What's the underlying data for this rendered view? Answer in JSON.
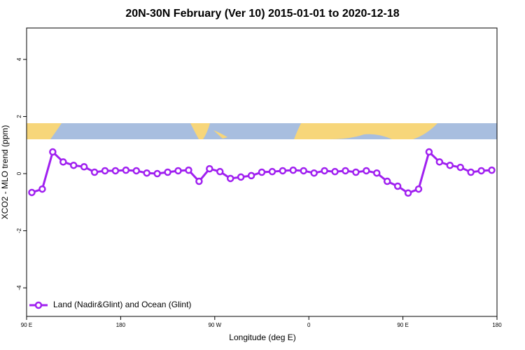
{
  "chart_data": {
    "type": "line",
    "title": "20N-30N February (Ver 10)   2015-01-01 to 2020-12-18",
    "x_label": "Longitude (deg E)",
    "y_label": "XCO2 - MLO trend (ppm)",
    "xlim": [
      90,
      540
    ],
    "xticks": [
      {
        "value": 90,
        "label": "90 E"
      },
      180,
      {
        "value": 270,
        "label": "90 W"
      },
      {
        "value": 360,
        "label": "0"
      },
      {
        "value": 450,
        "label": "90 E"
      },
      {
        "value": 540,
        "label": "180"
      }
    ],
    "ylim": [
      -5,
      5.1
    ],
    "yticks": [
      -4,
      -2,
      0,
      2,
      4
    ],
    "legend": "bottom-left",
    "x": [
      95,
      105,
      115,
      125,
      135,
      145,
      155,
      165,
      175,
      185,
      195,
      205,
      215,
      225,
      235,
      245,
      255,
      265,
      275,
      285,
      295,
      305,
      315,
      325,
      335,
      345,
      355,
      365,
      375,
      385,
      395,
      405,
      415,
      425,
      435,
      445,
      455,
      465,
      475,
      485,
      495,
      505,
      515,
      525,
      535
    ],
    "series": [
      {
        "name": "Land (Nadir&Glint) and Ocean (Glint)",
        "color": "#a020f0",
        "values": [
          -0.66,
          -0.54,
          0.76,
          0.41,
          0.29,
          0.24,
          0.05,
          0.1,
          0.1,
          0.12,
          0.1,
          0.02,
          0.0,
          0.05,
          0.1,
          0.12,
          -0.27,
          0.17,
          0.07,
          -0.17,
          -0.12,
          -0.07,
          0.05,
          0.07,
          0.1,
          0.12,
          0.1,
          0.02,
          0.1,
          0.07,
          0.1,
          0.05,
          0.1,
          0.02,
          -0.27,
          -0.44,
          -0.68,
          -0.54,
          0.76,
          0.41,
          0.29,
          0.22,
          0.05,
          0.1,
          0.12
        ]
      }
    ]
  }
}
